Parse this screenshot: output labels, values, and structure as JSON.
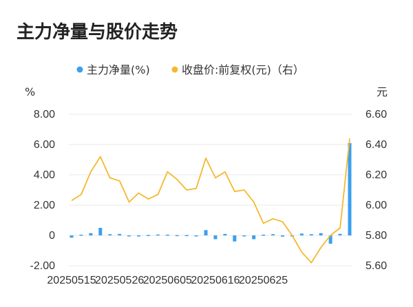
{
  "chart_data": {
    "type": "bar+line",
    "title": "主力净量与股价走势",
    "left_unit": "%",
    "right_unit": "元",
    "left_ylim": [
      -2,
      8
    ],
    "right_ylim": [
      5.6,
      6.6
    ],
    "left_ticks": [
      "8.00",
      "6.00",
      "4.00",
      "2.00",
      "0",
      "-2.00"
    ],
    "left_tick_values": [
      8,
      6,
      4,
      2,
      0,
      -2
    ],
    "right_ticks": [
      "6.60",
      "6.40",
      "6.20",
      "6.00",
      "5.80",
      "5.60"
    ],
    "right_tick_values": [
      6.6,
      6.4,
      6.2,
      6.0,
      5.8,
      5.6
    ],
    "x_tick_labels": [
      "20250515",
      "20250526",
      "20250605",
      "20250616",
      "20250625"
    ],
    "x_tick_indices": [
      0,
      5,
      10,
      15,
      20
    ],
    "grid": true,
    "legend_position": "top",
    "colors": {
      "bar": "#3b9ff0",
      "line": "#f5b82e",
      "grid": "#e8e8e8"
    },
    "series": [
      {
        "name": "主力净量(%)",
        "type": "bar",
        "axis": "left",
        "values": [
          -0.15,
          0.05,
          0.15,
          0.5,
          0.08,
          0.1,
          -0.02,
          -0.05,
          0.03,
          0.06,
          0.05,
          0.02,
          0.02,
          -0.03,
          0.35,
          -0.25,
          0.1,
          -0.4,
          -0.05,
          -0.25,
          0.05,
          0.08,
          -0.08,
          -0.05,
          0.12,
          0.08,
          0.15,
          -0.55,
          0.1,
          6.1
        ]
      },
      {
        "name": "收盘价:前复权(元)（右）",
        "type": "line",
        "axis": "right",
        "values": [
          6.03,
          6.07,
          6.22,
          6.32,
          6.18,
          6.16,
          6.02,
          6.08,
          6.04,
          6.07,
          6.22,
          6.17,
          6.1,
          6.11,
          6.31,
          6.18,
          6.22,
          6.09,
          6.1,
          6.02,
          5.88,
          5.91,
          5.89,
          5.8,
          5.69,
          5.62,
          5.72,
          5.8,
          5.85,
          6.44
        ]
      }
    ]
  }
}
